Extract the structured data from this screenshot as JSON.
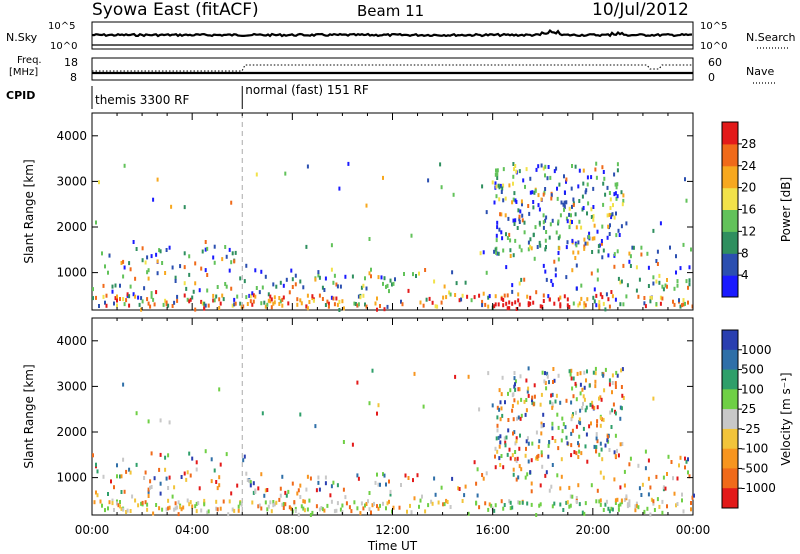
{
  "header": {
    "station": "Syowa East (fitACF)",
    "beam": "Beam 11",
    "date": "10/Jul/2012"
  },
  "top_panels": {
    "nsky_label": "N.Sky",
    "nsearch_label": "N.Search",
    "nsky_ticks": [
      "10^5",
      "10^0"
    ],
    "nsearch_ticks": [
      "10^5",
      "10^0"
    ],
    "freq_label_1": "Freq.",
    "freq_label_2": "[MHz]",
    "freq_ticks": [
      "18",
      "8"
    ],
    "nave_label": "Nave",
    "nave_ticks": [
      "60",
      "0"
    ],
    "cpid_label": "CPID",
    "cpid_segments": [
      {
        "label": "themis 3300 RF",
        "start_hour": 0,
        "end_hour": 6
      },
      {
        "label": "normal (fast) 151 RF",
        "start_hour": 6,
        "end_hour": 24
      }
    ]
  },
  "chart_data": [
    {
      "type": "heatmap",
      "name": "power",
      "ylabel": "Slant Range [km]",
      "y_ticks": [
        "1000",
        "2000",
        "3000",
        "4000"
      ],
      "ylim": [
        180,
        4500
      ],
      "colorbar": {
        "label": "Power [dB]",
        "ticks": [
          "4",
          "8",
          "12",
          "16",
          "20",
          "24",
          "28"
        ],
        "colors": [
          "#1a1aff",
          "#2b4fb0",
          "#2f8f5f",
          "#62c25a",
          "#f2e24a",
          "#f7a81f",
          "#f06a1a",
          "#e31a1a"
        ]
      }
    },
    {
      "type": "heatmap",
      "name": "velocity",
      "ylabel": "Slant Range [km]",
      "y_ticks": [
        "1000",
        "2000",
        "3000",
        "4000"
      ],
      "ylim": [
        180,
        4500
      ],
      "colorbar": {
        "label": "Velocity [m s⁻¹]",
        "ticks": [
          "1000",
          "500",
          "100",
          "25",
          "-25",
          "-100",
          "-500",
          "-1000"
        ],
        "colors": [
          "#2a3fb0",
          "#2f6fa8",
          "#2f9f6a",
          "#6fcf45",
          "#c8c8c8",
          "#f2c43a",
          "#f7951f",
          "#f06a1a",
          "#e31a1a"
        ]
      }
    }
  ],
  "x_axis": {
    "label": "Time UT",
    "ticks": [
      "00:00",
      "04:00",
      "08:00",
      "12:00",
      "16:00",
      "20:00",
      "00:00"
    ]
  }
}
